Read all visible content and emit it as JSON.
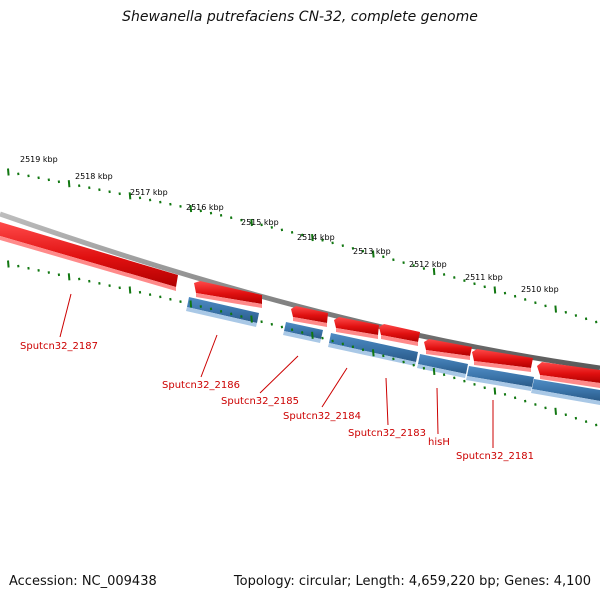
{
  "title": "Shewanella putrefaciens CN-32, complete genome",
  "footer": {
    "accession": "Accession: NC_009438",
    "summary": "Topology: circular; Length: 4,659,220 bp; Genes: 4,100"
  },
  "colors": {
    "forward_gene": "#ee1111",
    "reverse_gene": "#3f7fb8",
    "backbone": "#888888",
    "ticks": "#117711",
    "gene_label": "#cc0000"
  },
  "kbp_labels": [
    "2519 kbp",
    "2518 kbp",
    "2517 kbp",
    "2516 kbp",
    "2515 kbp",
    "2514 kbp",
    "2513 kbp",
    "2512 kbp",
    "2511 kbp",
    "2510 kbp"
  ],
  "gene_labels": [
    "Sputcn32_2187",
    "Sputcn32_2186",
    "Sputcn32_2185",
    "Sputcn32_2184",
    "Sputcn32_2183",
    "hisH",
    "Sputcn32_2181"
  ]
}
